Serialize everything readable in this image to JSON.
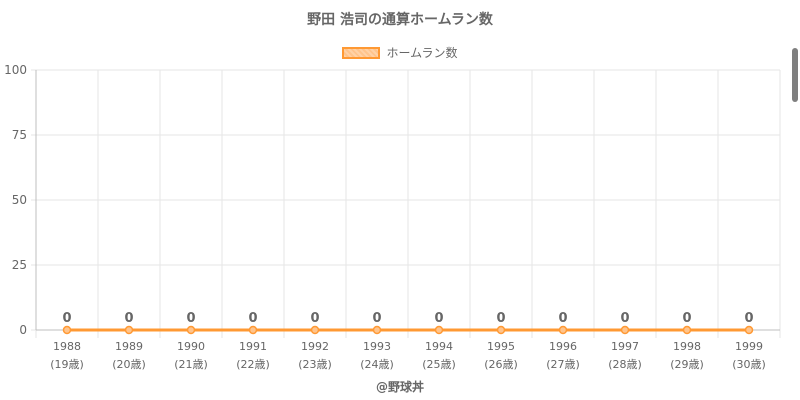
{
  "chart_data": {
    "type": "line",
    "title": "野田 浩司の通算ホームラン数",
    "categories": [
      "1988",
      "1989",
      "1990",
      "1991",
      "1992",
      "1993",
      "1994",
      "1995",
      "1996",
      "1997",
      "1998",
      "1999"
    ],
    "sublabels": [
      "(19歳)",
      "(20歳)",
      "(21歳)",
      "(22歳)",
      "(23歳)",
      "(24歳)",
      "(25歳)",
      "(26歳)",
      "(27歳)",
      "(28歳)",
      "(29歳)",
      "(30歳)"
    ],
    "series": [
      {
        "name": "ホームラン数",
        "values": [
          0,
          0,
          0,
          0,
          0,
          0,
          0,
          0,
          0,
          0,
          0,
          0
        ]
      }
    ],
    "ylim": [
      0,
      100
    ],
    "yticks": [
      0,
      25,
      50,
      75,
      100
    ],
    "grid": true,
    "legend_position": "top",
    "data_labels": true,
    "colors": {
      "line": "#ff9933",
      "fill": "#ffc48c",
      "grid": "#e5e5e5",
      "text": "#666666"
    }
  },
  "credit": "@野球丼"
}
